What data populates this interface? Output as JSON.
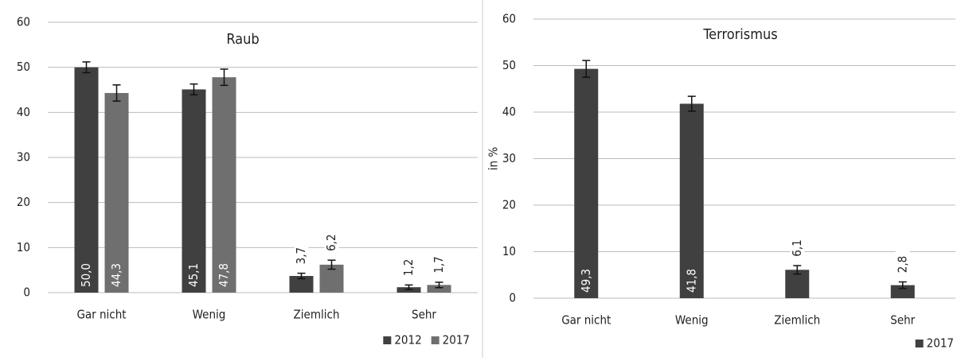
{
  "chart_data": [
    {
      "type": "bar",
      "title": "Raub",
      "categories": [
        "Gar nicht",
        "Wenig",
        "Ziemlich",
        "Sehr"
      ],
      "series": [
        {
          "name": "2012",
          "color": "#404040",
          "values": [
            50.0,
            45.1,
            3.7,
            1.2
          ],
          "value_labels": [
            "50,0",
            "45,1",
            "3,7",
            "1,2"
          ],
          "errors": [
            1.2,
            1.2,
            0.6,
            0.5
          ]
        },
        {
          "name": "2017",
          "color": "#6f6f6f",
          "values": [
            44.3,
            47.8,
            6.2,
            1.7
          ],
          "value_labels": [
            "44,3",
            "47,8",
            "6,2",
            "1,7"
          ],
          "errors": [
            1.8,
            1.8,
            1.0,
            0.6
          ]
        }
      ],
      "ylim": [
        0,
        60
      ],
      "yticks": [
        0,
        10,
        20,
        30,
        40,
        50,
        60
      ],
      "grid": true,
      "legend": "bottom-right"
    },
    {
      "type": "bar",
      "title": "Terrorismus",
      "ylabel": "in %",
      "categories": [
        "Gar nicht",
        "Wenig",
        "Ziemlich",
        "Sehr"
      ],
      "series": [
        {
          "name": "2017",
          "color": "#404040",
          "values": [
            49.3,
            41.8,
            6.1,
            2.8
          ],
          "value_labels": [
            "49,3",
            "41,8",
            "6,1",
            "2,8"
          ],
          "errors": [
            1.8,
            1.6,
            0.9,
            0.7
          ]
        }
      ],
      "ylim": [
        0,
        60
      ],
      "yticks": [
        0,
        10,
        20,
        30,
        40,
        50,
        60
      ],
      "grid": true,
      "legend": "bottom-right"
    }
  ]
}
